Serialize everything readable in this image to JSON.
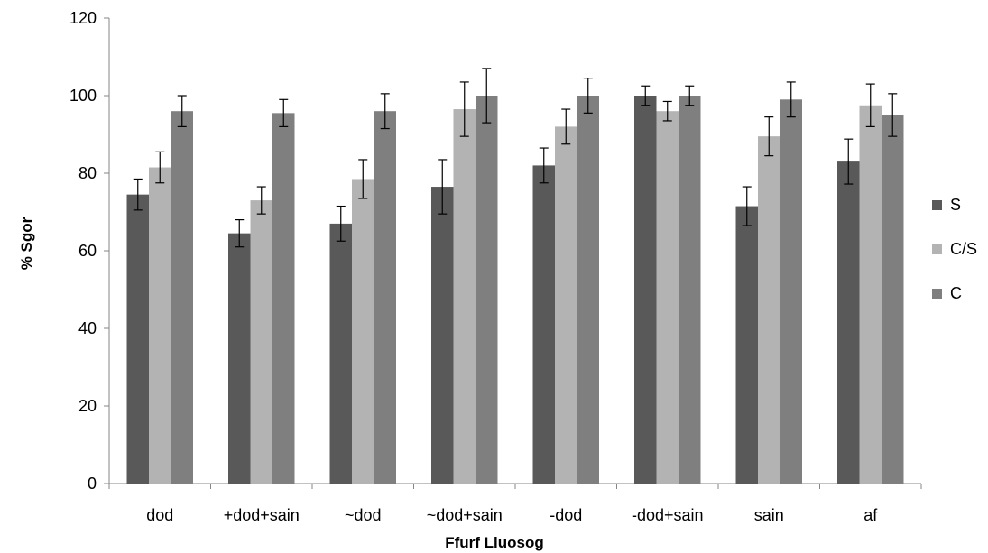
{
  "chart_data": {
    "type": "bar",
    "title": "",
    "xlabel": "Ffurf Lluosog",
    "ylabel": "% Sgor",
    "ylim": [
      0,
      120
    ],
    "yticks": [
      0,
      20,
      40,
      60,
      80,
      100,
      120
    ],
    "grid": false,
    "legend_position": "right",
    "categories": [
      "dod",
      "+dod+sain",
      "~dod",
      "~dod+sain",
      "-dod",
      "-dod+sain",
      "sain",
      "af"
    ],
    "series": [
      {
        "name": "S",
        "color": "#595959",
        "values": [
          74.5,
          64.5,
          67,
          76.5,
          82,
          100,
          71.5,
          83
        ],
        "errors": [
          4,
          3.5,
          4.5,
          7,
          4.5,
          2.5,
          5,
          5.8
        ]
      },
      {
        "name": "C/S",
        "color": "#b3b3b3",
        "values": [
          81.5,
          73,
          78.5,
          96.5,
          92,
          96,
          89.5,
          97.5
        ],
        "errors": [
          4,
          3.5,
          5,
          7,
          4.5,
          2.5,
          5,
          5.5
        ]
      },
      {
        "name": "C",
        "color": "#7f7f7f",
        "values": [
          96,
          95.5,
          96,
          100,
          100,
          100,
          99,
          95
        ],
        "errors": [
          4,
          3.5,
          4.5,
          7,
          4.5,
          2.5,
          4.5,
          5.5
        ]
      }
    ]
  }
}
